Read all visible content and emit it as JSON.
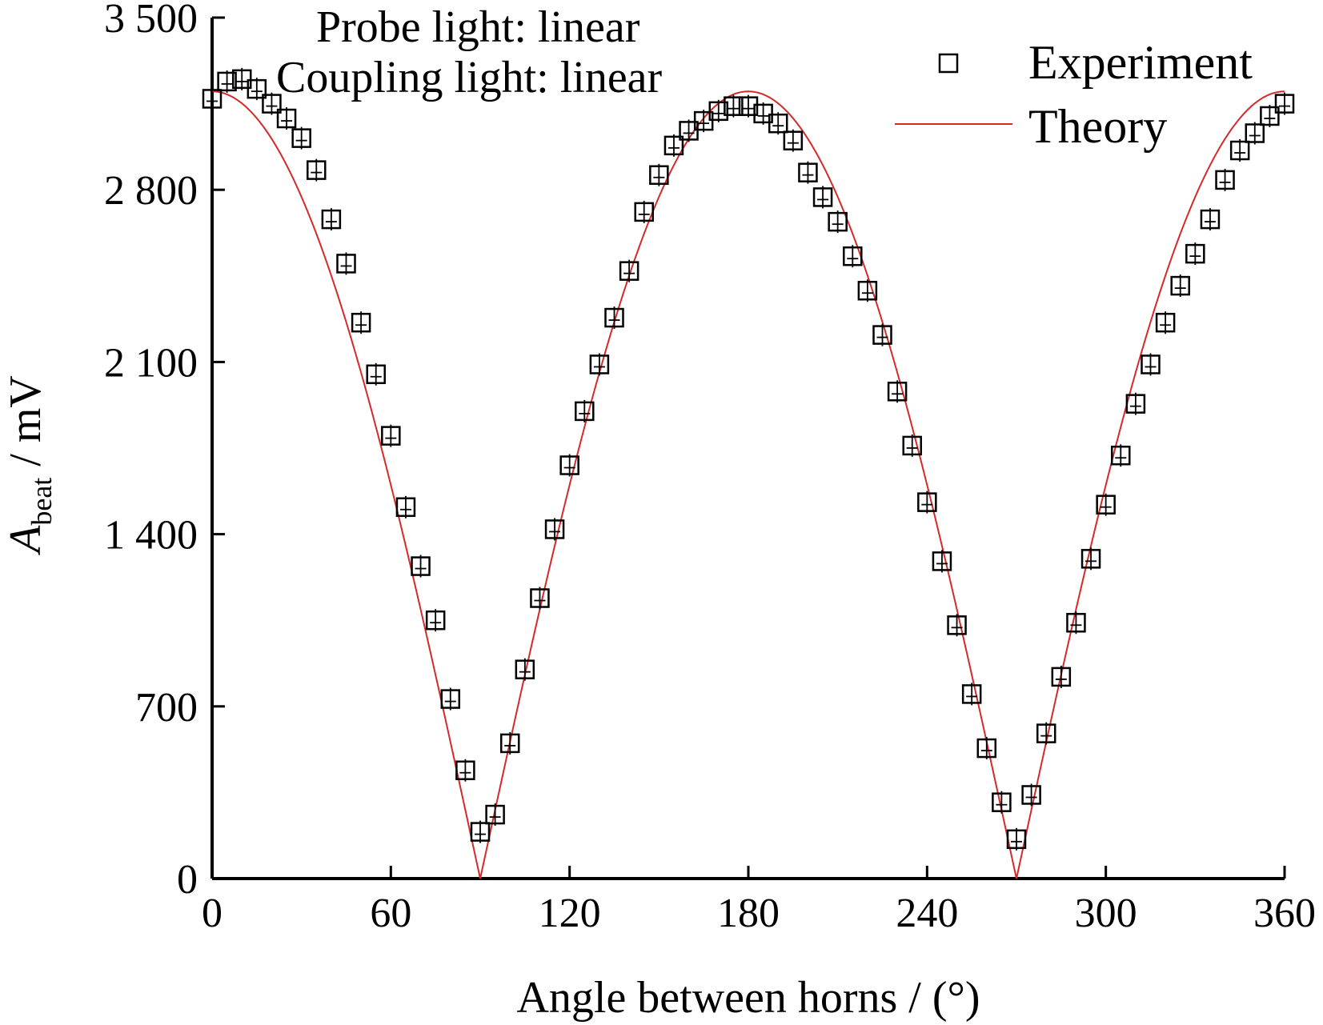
{
  "chart_data": {
    "type": "scatter",
    "xlabel": "Angle between horns / (°)",
    "ylabel_main": "A",
    "ylabel_sub": "beat",
    "ylabel_unit": " / mV",
    "xlim": [
      0,
      360
    ],
    "ylim": [
      0,
      3500
    ],
    "xticks": [
      0,
      60,
      120,
      180,
      240,
      300,
      360
    ],
    "yticks": [
      0,
      700,
      1400,
      2100,
      2800,
      3500
    ],
    "xtick_labels": [
      "0",
      "60",
      "120",
      "180",
      "240",
      "300",
      "360"
    ],
    "ytick_labels": [
      "0",
      "700",
      "1 400",
      "2 100",
      "2 800",
      "3 500"
    ],
    "annotations": [
      "Probe light: linear",
      "Coupling light: linear"
    ],
    "legend": {
      "position": "top-right",
      "entries": [
        "Experiment",
        "Theory"
      ]
    },
    "colors": {
      "experiment": "#000000",
      "theory": "#d42a2a"
    },
    "series": [
      {
        "name": "Experiment",
        "marker": "open-square",
        "x": [
          0,
          5,
          10,
          15,
          20,
          25,
          30,
          35,
          40,
          45,
          50,
          55,
          60,
          65,
          70,
          75,
          80,
          85,
          90,
          95,
          100,
          105,
          110,
          115,
          120,
          125,
          130,
          135,
          140,
          145,
          150,
          155,
          160,
          165,
          170,
          175,
          180,
          185,
          190,
          195,
          200,
          205,
          210,
          215,
          220,
          225,
          230,
          235,
          240,
          245,
          250,
          255,
          260,
          265,
          270,
          275,
          280,
          285,
          290,
          295,
          300,
          305,
          310,
          315,
          320,
          325,
          330,
          335,
          340,
          345,
          350,
          355,
          360
        ],
        "y": [
          3170,
          3240,
          3250,
          3210,
          3150,
          3090,
          3010,
          2880,
          2680,
          2500,
          2260,
          2050,
          1800,
          1510,
          1270,
          1050,
          730,
          440,
          190,
          260,
          550,
          850,
          1140,
          1420,
          1680,
          1900,
          2090,
          2280,
          2470,
          2710,
          2860,
          2980,
          3040,
          3080,
          3120,
          3140,
          3140,
          3110,
          3070,
          3000,
          2870,
          2770,
          2670,
          2530,
          2390,
          2210,
          1980,
          1760,
          1530,
          1290,
          1030,
          750,
          530,
          310,
          160,
          340,
          590,
          820,
          1040,
          1300,
          1520,
          1720,
          1930,
          2090,
          2260,
          2410,
          2540,
          2680,
          2840,
          2960,
          3030,
          3100,
          3150
        ]
      },
      {
        "name": "Theory",
        "type": "line",
        "amplitude": 3200,
        "function": "A·|cos(x)|"
      }
    ]
  }
}
